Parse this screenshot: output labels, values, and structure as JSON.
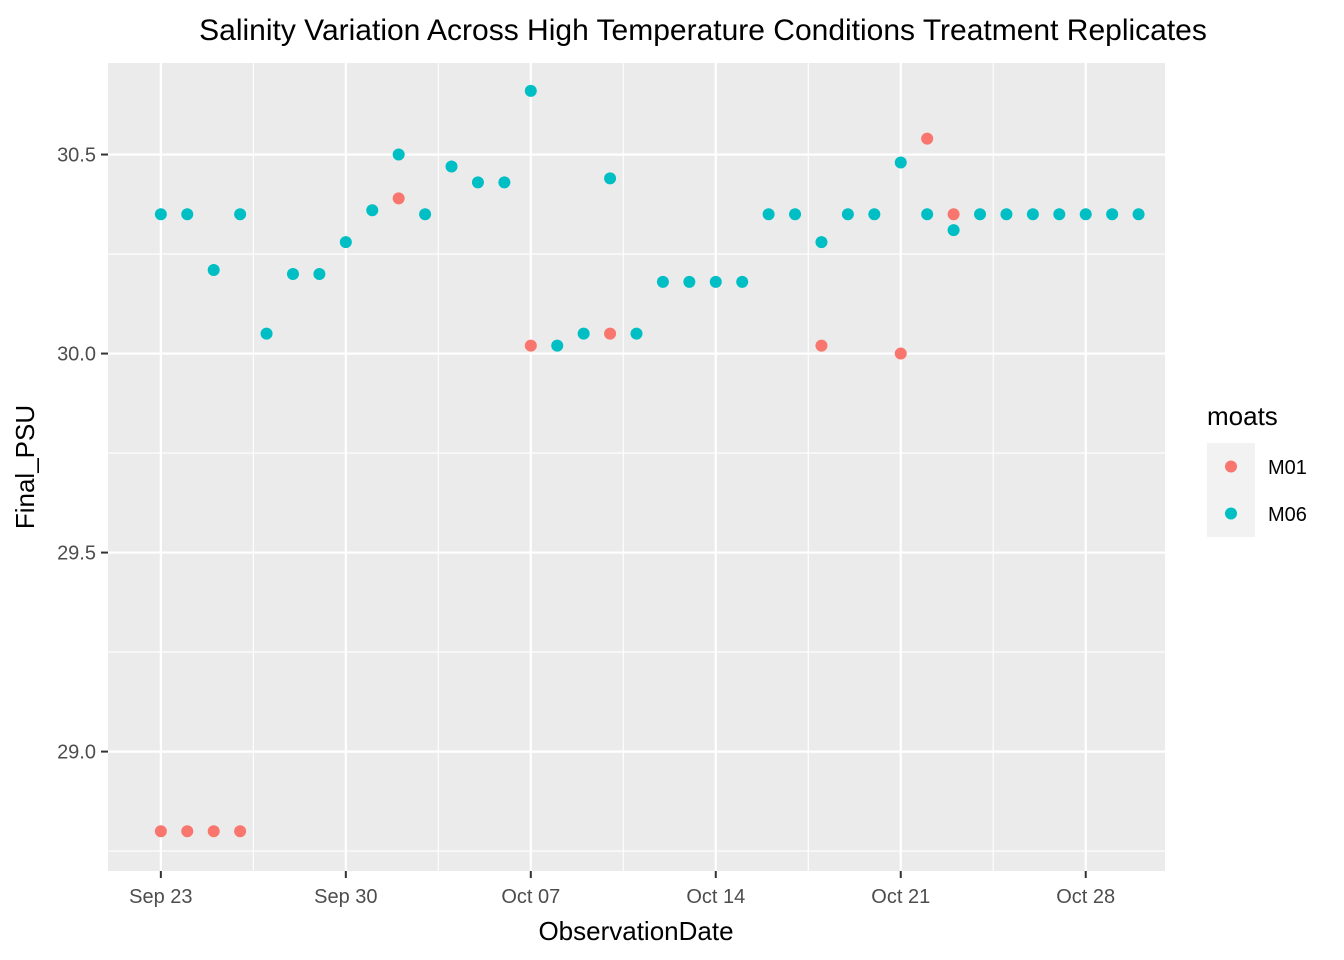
{
  "chart_data": {
    "type": "scatter",
    "title": "Salinity Variation Across High Temperature Conditions Treatment Replicates",
    "xlabel": "ObservationDate",
    "ylabel": "Final_PSU",
    "x_ticks": [
      {
        "date": "2023-09-23",
        "label": "Sep 23"
      },
      {
        "date": "2023-09-30",
        "label": "Sep 30"
      },
      {
        "date": "2023-10-07",
        "label": "Oct 07"
      },
      {
        "date": "2023-10-14",
        "label": "Oct 14"
      },
      {
        "date": "2023-10-21",
        "label": "Oct 21"
      },
      {
        "date": "2023-10-28",
        "label": "Oct 28"
      }
    ],
    "xlim": [
      "2023-09-21",
      "2023-10-31"
    ],
    "y_ticks": [
      29.0,
      29.5,
      30.0,
      30.5
    ],
    "y_tick_labels": [
      "29.0",
      "29.5",
      "30.0",
      "30.5"
    ],
    "ylim": [
      28.7,
      30.73
    ],
    "grid": true,
    "legend": {
      "title": "moats",
      "position": "right"
    },
    "series": [
      {
        "name": "M01",
        "color": "#F8766D",
        "points": [
          {
            "x": "2023-09-23",
            "y": 28.8
          },
          {
            "x": "2023-09-24",
            "y": 28.8
          },
          {
            "x": "2023-09-25",
            "y": 28.8
          },
          {
            "x": "2023-09-26",
            "y": 28.8
          },
          {
            "x": "2023-10-02",
            "y": 30.39
          },
          {
            "x": "2023-10-07",
            "y": 30.02
          },
          {
            "x": "2023-10-10",
            "y": 30.05
          },
          {
            "x": "2023-10-18",
            "y": 30.02
          },
          {
            "x": "2023-10-21",
            "y": 30.0
          },
          {
            "x": "2023-10-22",
            "y": 30.54
          },
          {
            "x": "2023-10-23",
            "y": 30.35
          }
        ]
      },
      {
        "name": "M06",
        "color": "#00BFC4",
        "points": [
          {
            "x": "2023-09-23",
            "y": 30.35
          },
          {
            "x": "2023-09-24",
            "y": 30.35
          },
          {
            "x": "2023-09-25",
            "y": 30.21
          },
          {
            "x": "2023-09-26",
            "y": 30.35
          },
          {
            "x": "2023-09-27",
            "y": 30.05
          },
          {
            "x": "2023-09-28",
            "y": 30.2
          },
          {
            "x": "2023-09-29",
            "y": 30.2
          },
          {
            "x": "2023-09-30",
            "y": 30.28
          },
          {
            "x": "2023-10-01",
            "y": 30.36
          },
          {
            "x": "2023-10-02",
            "y": 30.5
          },
          {
            "x": "2023-10-03",
            "y": 30.35
          },
          {
            "x": "2023-10-04",
            "y": 30.47
          },
          {
            "x": "2023-10-05",
            "y": 30.43
          },
          {
            "x": "2023-10-06",
            "y": 30.43
          },
          {
            "x": "2023-10-07",
            "y": 30.66
          },
          {
            "x": "2023-10-08",
            "y": 30.02
          },
          {
            "x": "2023-10-09",
            "y": 30.05
          },
          {
            "x": "2023-10-10",
            "y": 30.44
          },
          {
            "x": "2023-10-11",
            "y": 30.05
          },
          {
            "x": "2023-10-12",
            "y": 30.18
          },
          {
            "x": "2023-10-13",
            "y": 30.18
          },
          {
            "x": "2023-10-14",
            "y": 30.18
          },
          {
            "x": "2023-10-15",
            "y": 30.18
          },
          {
            "x": "2023-10-16",
            "y": 30.35
          },
          {
            "x": "2023-10-17",
            "y": 30.35
          },
          {
            "x": "2023-10-18",
            "y": 30.28
          },
          {
            "x": "2023-10-19",
            "y": 30.35
          },
          {
            "x": "2023-10-20",
            "y": 30.35
          },
          {
            "x": "2023-10-21",
            "y": 30.48
          },
          {
            "x": "2023-10-22",
            "y": 30.35
          },
          {
            "x": "2023-10-23",
            "y": 30.31
          },
          {
            "x": "2023-10-24",
            "y": 30.35
          },
          {
            "x": "2023-10-25",
            "y": 30.35
          },
          {
            "x": "2023-10-26",
            "y": 30.35
          },
          {
            "x": "2023-10-27",
            "y": 30.35
          },
          {
            "x": "2023-10-28",
            "y": 30.35
          },
          {
            "x": "2023-10-29",
            "y": 30.35
          },
          {
            "x": "2023-10-30",
            "y": 30.35
          }
        ]
      }
    ]
  }
}
